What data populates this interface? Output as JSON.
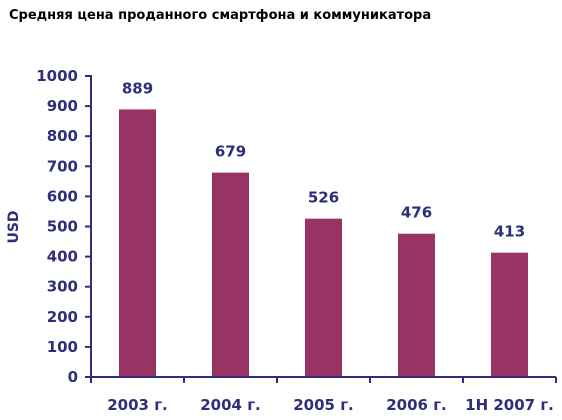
{
  "chart_data": {
    "type": "bar",
    "title": "Средняя цена проданного смартфона и коммуникатора",
    "xlabel": "",
    "ylabel": "USD",
    "categories": [
      "2003 г.",
      "2004 г.",
      "2005 г.",
      "2006 г.",
      "1Н 2007 г."
    ],
    "values": [
      889,
      679,
      526,
      476,
      413
    ],
    "ylim": [
      0,
      1000
    ],
    "yticks": [
      "0",
      "100",
      "200",
      "300",
      "400",
      "500",
      "600",
      "700",
      "800",
      "900",
      "1000"
    ],
    "grid": false,
    "legend": "none",
    "colors": {
      "bar": "#993366",
      "axis": "#2e2e7a",
      "text": "#2e2e7a"
    }
  }
}
